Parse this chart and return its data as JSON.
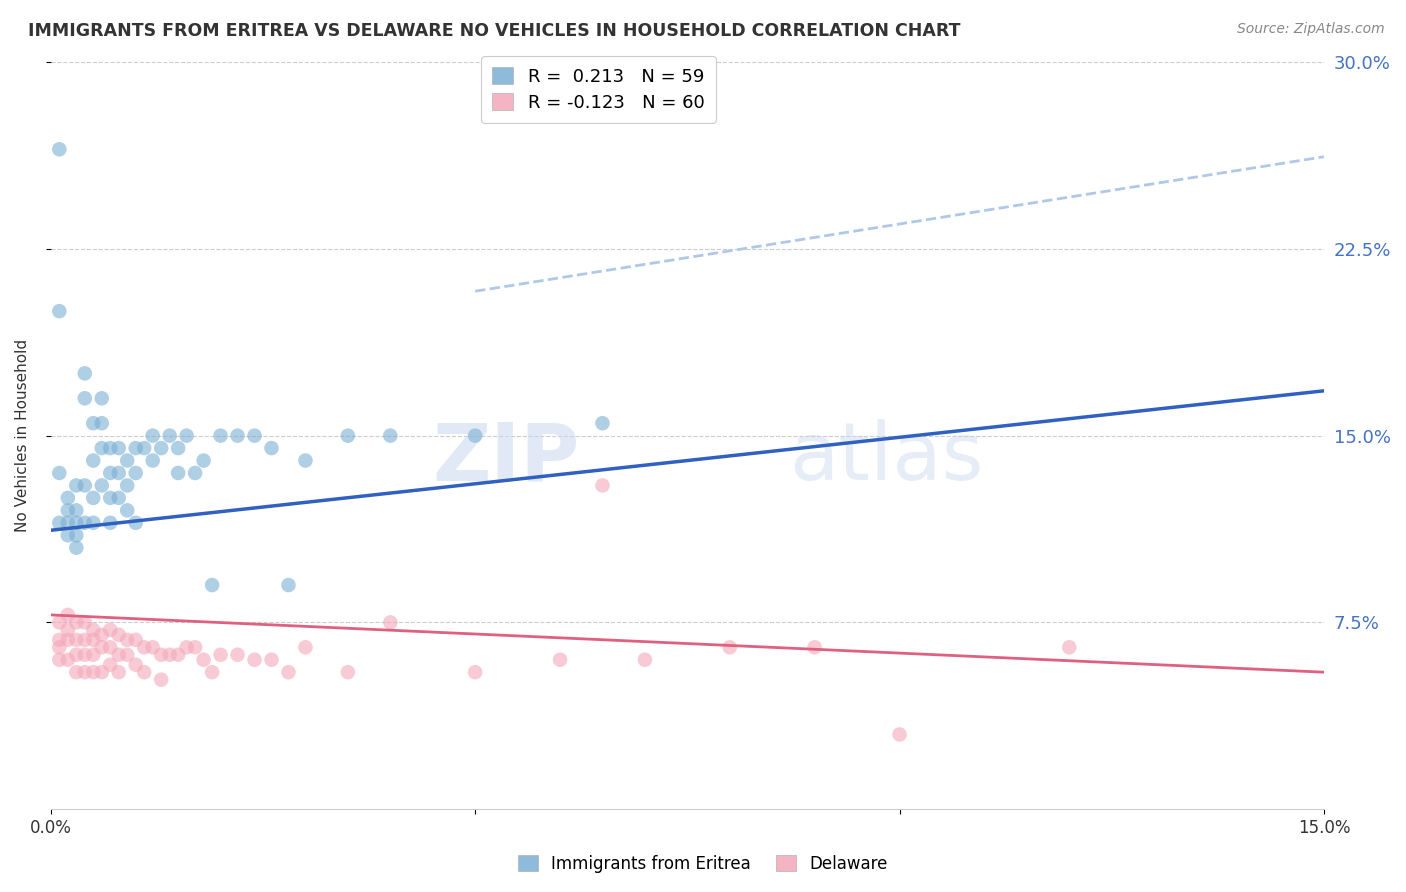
{
  "title": "IMMIGRANTS FROM ERITREA VS DELAWARE NO VEHICLES IN HOUSEHOLD CORRELATION CHART",
  "source": "Source: ZipAtlas.com",
  "ylabel": "No Vehicles in Household",
  "xlabel_blue": "Immigrants from Eritrea",
  "xlabel_pink": "Delaware",
  "watermark_zip": "ZIP",
  "watermark_atlas": "atlas",
  "xlim": [
    0.0,
    0.15
  ],
  "ylim": [
    0.0,
    0.3
  ],
  "ytick_labels_right": [
    "7.5%",
    "15.0%",
    "22.5%",
    "30.0%"
  ],
  "ytick_vals_right": [
    0.075,
    0.15,
    0.225,
    0.3
  ],
  "legend_blue_r": "R =  0.213",
  "legend_blue_n": "N = 59",
  "legend_pink_r": "R = -0.123",
  "legend_pink_n": "N = 60",
  "blue_color": "#7bafd4",
  "pink_color": "#f4a7b9",
  "blue_line_color": "#3060c0",
  "pink_line_color": "#e06080",
  "dashed_line_color": "#b0c8e8",
  "title_color": "#333333",
  "source_color": "#888888",
  "axis_label_color": "#333333",
  "tick_label_color_right": "#4472c4",
  "tick_label_color_bottom": "#333333",
  "background_color": "#ffffff",
  "grid_color": "#cccccc",
  "blue_scatter_x": [
    0.001,
    0.001,
    0.001,
    0.002,
    0.002,
    0.002,
    0.002,
    0.003,
    0.003,
    0.003,
    0.003,
    0.003,
    0.004,
    0.004,
    0.004,
    0.004,
    0.005,
    0.005,
    0.005,
    0.005,
    0.006,
    0.006,
    0.006,
    0.006,
    0.007,
    0.007,
    0.007,
    0.007,
    0.008,
    0.008,
    0.008,
    0.009,
    0.009,
    0.009,
    0.01,
    0.01,
    0.01,
    0.011,
    0.012,
    0.012,
    0.013,
    0.014,
    0.015,
    0.015,
    0.016,
    0.017,
    0.018,
    0.019,
    0.02,
    0.022,
    0.024,
    0.026,
    0.028,
    0.03,
    0.035,
    0.04,
    0.05,
    0.065,
    0.001
  ],
  "blue_scatter_y": [
    0.2,
    0.135,
    0.115,
    0.125,
    0.12,
    0.115,
    0.11,
    0.13,
    0.12,
    0.115,
    0.11,
    0.105,
    0.175,
    0.165,
    0.13,
    0.115,
    0.155,
    0.14,
    0.125,
    0.115,
    0.165,
    0.155,
    0.145,
    0.13,
    0.145,
    0.135,
    0.125,
    0.115,
    0.145,
    0.135,
    0.125,
    0.14,
    0.13,
    0.12,
    0.145,
    0.135,
    0.115,
    0.145,
    0.15,
    0.14,
    0.145,
    0.15,
    0.145,
    0.135,
    0.15,
    0.135,
    0.14,
    0.09,
    0.15,
    0.15,
    0.15,
    0.145,
    0.09,
    0.14,
    0.15,
    0.15,
    0.15,
    0.155,
    0.265
  ],
  "pink_scatter_x": [
    0.001,
    0.001,
    0.001,
    0.001,
    0.002,
    0.002,
    0.002,
    0.002,
    0.003,
    0.003,
    0.003,
    0.003,
    0.004,
    0.004,
    0.004,
    0.004,
    0.005,
    0.005,
    0.005,
    0.005,
    0.006,
    0.006,
    0.006,
    0.007,
    0.007,
    0.007,
    0.008,
    0.008,
    0.008,
    0.009,
    0.009,
    0.01,
    0.01,
    0.011,
    0.011,
    0.012,
    0.013,
    0.013,
    0.014,
    0.015,
    0.016,
    0.017,
    0.018,
    0.019,
    0.02,
    0.022,
    0.024,
    0.026,
    0.028,
    0.03,
    0.035,
    0.04,
    0.05,
    0.06,
    0.065,
    0.07,
    0.08,
    0.09,
    0.1,
    0.12
  ],
  "pink_scatter_y": [
    0.075,
    0.068,
    0.065,
    0.06,
    0.078,
    0.072,
    0.068,
    0.06,
    0.075,
    0.068,
    0.062,
    0.055,
    0.075,
    0.068,
    0.062,
    0.055,
    0.072,
    0.068,
    0.062,
    0.055,
    0.07,
    0.065,
    0.055,
    0.072,
    0.065,
    0.058,
    0.07,
    0.062,
    0.055,
    0.068,
    0.062,
    0.068,
    0.058,
    0.065,
    0.055,
    0.065,
    0.062,
    0.052,
    0.062,
    0.062,
    0.065,
    0.065,
    0.06,
    0.055,
    0.062,
    0.062,
    0.06,
    0.06,
    0.055,
    0.065,
    0.055,
    0.075,
    0.055,
    0.06,
    0.13,
    0.06,
    0.065,
    0.065,
    0.03,
    0.065
  ],
  "blue_line_x": [
    0.0,
    0.15
  ],
  "blue_line_y": [
    0.112,
    0.168
  ],
  "pink_line_x": [
    0.0,
    0.15
  ],
  "pink_line_y": [
    0.078,
    0.055
  ],
  "dashed_line_x": [
    0.05,
    0.15
  ],
  "dashed_line_y": [
    0.208,
    0.262
  ]
}
